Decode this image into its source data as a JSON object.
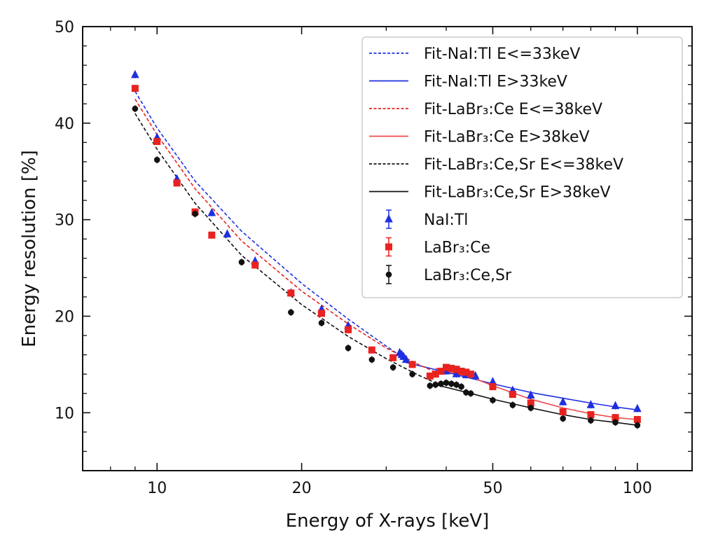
{
  "chart_data": {
    "type": "scatter",
    "xlabel": "Energy of X-rays [keV]",
    "ylabel": "Energy resolution [%]",
    "xscale": "log",
    "xlim": [
      7,
      130
    ],
    "ylim": [
      4,
      50
    ],
    "xticks": [
      10,
      20,
      50,
      100
    ],
    "xtick_labels": [
      "10",
      "20",
      "50",
      "100"
    ],
    "yticks": [
      10,
      20,
      30,
      40,
      50
    ],
    "ytick_labels": [
      "10",
      "20",
      "30",
      "40",
      "50"
    ],
    "grid": false,
    "legend_position": "top-right",
    "fits": [
      {
        "name": "Fit-NaI:Tl E<=33keV",
        "color": "#1f2fe0",
        "style": "dashed",
        "x": [
          9,
          10,
          12,
          15,
          20,
          25,
          30,
          33
        ],
        "y": [
          43.3,
          39.5,
          34.0,
          28.8,
          23.4,
          19.7,
          16.9,
          15.5
        ]
      },
      {
        "name": "Fit-NaI:Tl E>33keV",
        "color": "#1f2fe0",
        "style": "solid",
        "x": [
          33,
          40,
          50,
          60,
          70,
          80,
          90,
          100
        ],
        "y": [
          15.2,
          14.2,
          13.0,
          12.1,
          11.5,
          11.0,
          10.6,
          10.3
        ]
      },
      {
        "name": "Fit-LaBr₃:Ce E<=38keV",
        "color": "#e8231f",
        "style": "dashed",
        "x": [
          9,
          10,
          12,
          15,
          20,
          25,
          30,
          35,
          38
        ],
        "y": [
          42.5,
          38.8,
          33.2,
          27.8,
          22.6,
          19.2,
          16.7,
          15.0,
          14.2
        ]
      },
      {
        "name": "Fit-LaBr₃:Ce E>38keV",
        "color": "#f04a4a",
        "style": "solid",
        "x": [
          38,
          40,
          45,
          50,
          60,
          70,
          80,
          90,
          100
        ],
        "y": [
          14.6,
          14.3,
          13.7,
          12.8,
          11.4,
          10.5,
          9.9,
          9.5,
          9.3
        ]
      },
      {
        "name": "Fit-LaBr₃:Ce,Sr E<=38keV",
        "color": "#111111",
        "style": "dashed",
        "x": [
          9,
          10,
          12,
          15,
          20,
          25,
          30,
          35,
          38
        ],
        "y": [
          41.0,
          37.3,
          31.7,
          26.3,
          21.2,
          17.9,
          15.6,
          13.9,
          13.1
        ]
      },
      {
        "name": "Fit-LaBr₃:Ce,Sr E>38keV",
        "color": "#111111",
        "style": "solid",
        "x": [
          38,
          45,
          50,
          60,
          70,
          80,
          90,
          100
        ],
        "y": [
          12.9,
          12.0,
          11.4,
          10.5,
          9.8,
          9.3,
          9.0,
          8.7
        ]
      }
    ],
    "series": [
      {
        "name": "NaI:Tl",
        "color": "#1f2fe0",
        "marker": "triangle",
        "x": [
          9,
          10,
          11,
          13,
          14,
          16,
          19,
          22,
          25,
          32,
          32.3,
          32.6,
          33,
          40,
          42,
          44,
          46,
          50,
          55,
          60,
          70,
          80,
          90,
          100
        ],
        "y": [
          45.0,
          38.5,
          34.2,
          30.7,
          28.5,
          25.7,
          22.4,
          20.7,
          19.0,
          16.2,
          16.0,
          15.8,
          15.5,
          14.3,
          14.0,
          13.9,
          13.8,
          13.2,
          12.3,
          11.8,
          11.1,
          10.8,
          10.7,
          10.4
        ]
      },
      {
        "name": "LaBr₃:Ce",
        "color": "#e8231f",
        "marker": "square",
        "x": [
          9,
          10,
          11,
          12,
          13,
          16,
          19,
          22,
          25,
          28,
          31,
          34,
          37,
          38,
          39,
          40,
          41,
          42,
          43,
          44,
          45,
          50,
          55,
          60,
          70,
          80,
          90,
          100
        ],
        "y": [
          43.6,
          38.1,
          33.8,
          30.8,
          28.4,
          25.3,
          22.4,
          20.3,
          18.6,
          16.5,
          15.7,
          15.0,
          13.8,
          14.0,
          14.3,
          14.7,
          14.6,
          14.5,
          14.3,
          14.2,
          14.0,
          12.7,
          11.9,
          11.0,
          10.1,
          9.8,
          9.5,
          9.3
        ]
      },
      {
        "name": "LaBr₃:Ce,Sr",
        "color": "#111111",
        "marker": "circle",
        "x": [
          9,
          10,
          12,
          15,
          19,
          22,
          25,
          28,
          31,
          34,
          37,
          38,
          39,
          40,
          41,
          42,
          43,
          44,
          45,
          50,
          55,
          60,
          70,
          80,
          90,
          100
        ],
        "y": [
          41.5,
          36.2,
          30.6,
          25.6,
          20.4,
          19.3,
          16.7,
          15.5,
          14.7,
          14.0,
          12.8,
          12.9,
          13.0,
          13.1,
          13.0,
          12.9,
          12.7,
          12.1,
          12.0,
          11.3,
          10.8,
          10.5,
          9.4,
          9.2,
          9.0,
          8.7
        ]
      }
    ]
  }
}
